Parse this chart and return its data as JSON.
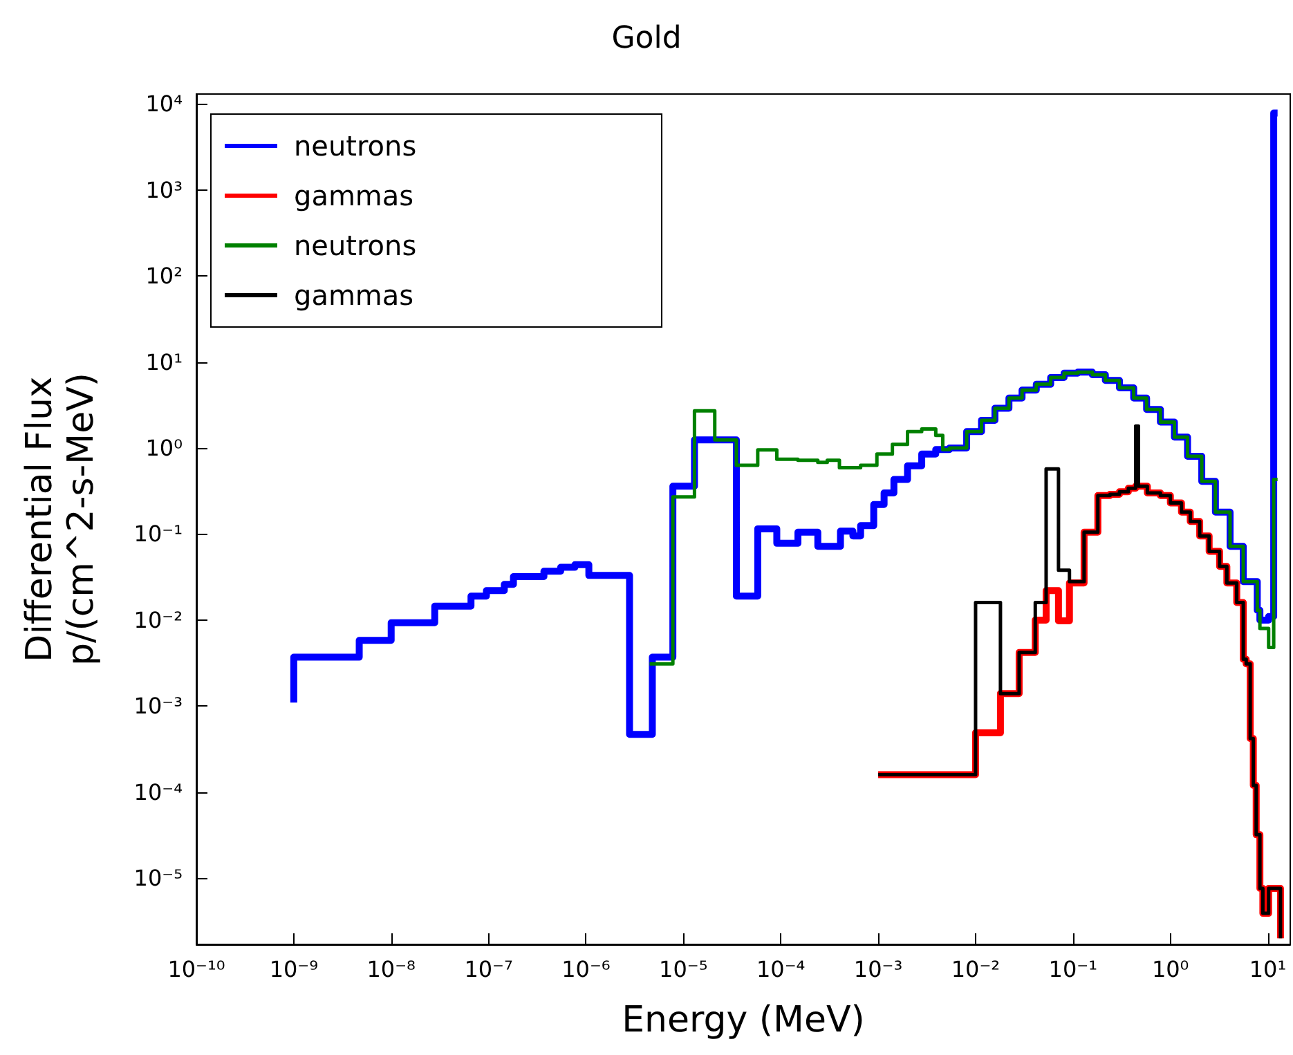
{
  "chart_data": {
    "type": "step",
    "title": "Gold",
    "xlabel": "Energy (MeV)",
    "ylabel": "Differential Flux\np/(cm^2-s-MeV)",
    "log": "xy",
    "grid": false,
    "legend": "top left",
    "xlim": [
      1e-10,
      17
    ],
    "ylim": [
      1.7e-06,
      13000
    ],
    "xticks": [
      {
        "value": 1e-10,
        "label": "10⁻¹⁰"
      },
      {
        "value": 1e-09,
        "label": "10⁻⁹"
      },
      {
        "value": 1e-08,
        "label": "10⁻⁸"
      },
      {
        "value": 1e-07,
        "label": "10⁻⁷"
      },
      {
        "value": 1e-06,
        "label": "10⁻⁶"
      },
      {
        "value": 1e-05,
        "label": "10⁻⁵"
      },
      {
        "value": 0.0001,
        "label": "10⁻⁴"
      },
      {
        "value": 0.001,
        "label": "10⁻³"
      },
      {
        "value": 0.01,
        "label": "10⁻²"
      },
      {
        "value": 0.1,
        "label": "10⁻¹"
      },
      {
        "value": 1,
        "label": "10⁰"
      },
      {
        "value": 10,
        "label": "10¹"
      }
    ],
    "yticks": [
      {
        "value": 1e-05,
        "label": "10⁻⁵"
      },
      {
        "value": 0.0001,
        "label": "10⁻⁴"
      },
      {
        "value": 0.001,
        "label": "10⁻³"
      },
      {
        "value": 0.01,
        "label": "10⁻²"
      },
      {
        "value": 0.1,
        "label": "10⁻¹"
      },
      {
        "value": 1,
        "label": "10⁰"
      },
      {
        "value": 10,
        "label": "10¹"
      },
      {
        "value": 100,
        "label": "10²"
      },
      {
        "value": 1000,
        "label": "10³"
      },
      {
        "value": 10000,
        "label": "10⁴"
      }
    ],
    "series": [
      {
        "name": "neutrons",
        "color": "#0000ff",
        "x": [
          1e-09,
          1e-09,
          4.7e-09,
          1e-08,
          2.8e-08,
          6.6e-08,
          9.5e-08,
          1.45e-07,
          1.8e-07,
          3.7e-07,
          5.5e-07,
          7.7e-07,
          1.07e-06,
          2.8e-06,
          4.8e-06,
          7.8e-06,
          1.3e-05,
          3.5e-05,
          5.8e-05,
          9.1e-05,
          0.00015,
          0.00024,
          0.00041,
          0.00055,
          0.00066,
          0.0009,
          0.00115,
          0.00145,
          0.002,
          0.0028,
          0.0039,
          0.0054,
          0.0081,
          0.0115,
          0.0158,
          0.022,
          0.03,
          0.042,
          0.059,
          0.081,
          0.112,
          0.158,
          0.215,
          0.3,
          0.42,
          0.57,
          0.79,
          1.1,
          1.5,
          2.1,
          2.9,
          4.1,
          5.6,
          7.8,
          8.3,
          10.2,
          11.5,
          12.6
        ],
        "values": [
          0.0011,
          0.0037,
          0.0058,
          0.0093,
          0.0145,
          0.019,
          0.022,
          0.026,
          0.032,
          0.037,
          0.041,
          0.044,
          0.033,
          0.00047,
          0.0037,
          0.36,
          1.24,
          0.019,
          0.115,
          0.078,
          0.105,
          0.072,
          0.108,
          0.095,
          0.125,
          0.22,
          0.3,
          0.43,
          0.62,
          0.85,
          0.96,
          1.0,
          1.55,
          2.1,
          2.9,
          3.8,
          4.7,
          5.5,
          6.6,
          7.4,
          7.6,
          7.1,
          6.1,
          5.0,
          3.8,
          2.8,
          2.0,
          1.34,
          0.8,
          0.41,
          0.18,
          0.072,
          0.028,
          0.013,
          0.01,
          0.011,
          7800,
          7800
        ]
      },
      {
        "name": "gammas",
        "color": "#ff0000",
        "x": [
          0.001,
          0.01,
          0.018,
          0.028,
          0.041,
          0.053,
          0.071,
          0.092,
          0.13,
          0.18,
          0.24,
          0.3,
          0.37,
          0.44,
          0.58,
          0.79,
          1.0,
          1.3,
          1.6,
          2.0,
          2.5,
          3.2,
          3.8,
          4.8,
          5.6,
          6.0,
          6.6,
          7.1,
          7.6,
          8.3,
          8.9,
          10.2,
          13.5
        ],
        "values": [
          0.00016,
          0.00049,
          0.0014,
          0.0042,
          0.01,
          0.022,
          0.0098,
          0.027,
          0.105,
          0.28,
          0.29,
          0.31,
          0.34,
          0.36,
          0.3,
          0.28,
          0.23,
          0.18,
          0.14,
          0.095,
          0.063,
          0.042,
          0.027,
          0.016,
          0.0035,
          0.0031,
          0.00042,
          0.00012,
          3.2e-05,
          7.6e-06,
          3.9e-06,
          7.6e-06,
          2e-06
        ]
      },
      {
        "name": "neutrons",
        "color": "#008000",
        "x": [
          4.5e-06,
          7.8e-06,
          1.3e-05,
          2.1e-05,
          3.5e-05,
          5.8e-05,
          9.1e-05,
          0.00015,
          0.00024,
          0.0003,
          0.0004,
          0.00066,
          0.00097,
          0.0014,
          0.002,
          0.0028,
          0.0039,
          0.0046,
          0.0054,
          0.0081,
          0.0115,
          0.0158,
          0.022,
          0.03,
          0.042,
          0.059,
          0.081,
          0.112,
          0.158,
          0.215,
          0.3,
          0.42,
          0.57,
          0.79,
          1.1,
          1.5,
          2.1,
          2.9,
          4.1,
          5.6,
          7.8,
          8.3,
          10.2,
          11.5,
          12.6
        ],
        "values": [
          0.0031,
          0.27,
          2.7,
          1.24,
          0.63,
          0.95,
          0.74,
          0.72,
          0.68,
          0.72,
          0.59,
          0.63,
          0.85,
          1.1,
          1.55,
          1.66,
          1.4,
          0.96,
          1.0,
          1.55,
          2.1,
          2.9,
          3.8,
          4.7,
          5.5,
          6.6,
          7.4,
          7.6,
          7.1,
          6.1,
          5.0,
          3.8,
          2.8,
          2.0,
          1.34,
          0.8,
          0.41,
          0.18,
          0.072,
          0.028,
          0.013,
          0.008,
          0.0048,
          0.43,
          0.43
        ]
      },
      {
        "name": "gammas",
        "color": "#000000",
        "x": [
          0.001,
          0.01,
          0.018,
          0.028,
          0.041,
          0.053,
          0.071,
          0.092,
          0.13,
          0.18,
          0.24,
          0.3,
          0.37,
          0.44,
          0.47,
          0.58,
          0.79,
          1.0,
          1.3,
          1.6,
          2.0,
          2.5,
          3.2,
          3.8,
          4.8,
          5.6,
          6.0,
          6.6,
          7.1,
          7.6,
          8.3,
          8.9,
          10.2,
          13.5
        ],
        "values": [
          0.00016,
          0.016,
          0.0014,
          0.0042,
          0.016,
          0.57,
          0.038,
          0.028,
          0.105,
          0.28,
          0.29,
          0.31,
          0.34,
          1.8,
          0.36,
          0.3,
          0.28,
          0.23,
          0.18,
          0.14,
          0.095,
          0.063,
          0.042,
          0.027,
          0.016,
          0.0035,
          0.0031,
          0.00042,
          0.00012,
          3.2e-05,
          7.6e-06,
          3.9e-06,
          7.6e-06,
          2e-06
        ]
      }
    ]
  }
}
